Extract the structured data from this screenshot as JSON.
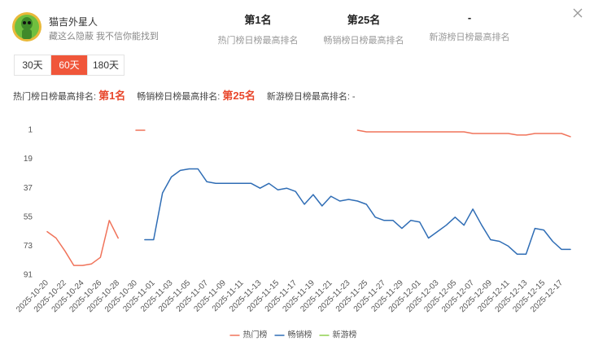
{
  "header": {
    "name": "猫吉外星人",
    "subtitle": "藏这么隐蔽 我不信你能找到",
    "stats": [
      {
        "value": "第1名",
        "label": "热门榜日榜最高排名"
      },
      {
        "value": "第25名",
        "label": "畅销榜日榜最高排名"
      },
      {
        "value": "-",
        "label": "新游榜日榜最高排名"
      }
    ]
  },
  "tabs": {
    "items": [
      "30天",
      "60天",
      "180天"
    ],
    "active": 1
  },
  "summary": [
    {
      "label": "热门榜日榜最高排名:",
      "value": "第1名"
    },
    {
      "label": "畅销榜日榜最高排名:",
      "value": "第25名"
    },
    {
      "label": "新游榜日榜最高排名:",
      "value": "-"
    }
  ],
  "chart_data": {
    "type": "line",
    "categories": [
      "2025-10-20",
      null,
      "2025-10-22",
      null,
      "2025-10-24",
      null,
      "2025-10-26",
      null,
      "2025-10-28",
      null,
      "2025-10-30",
      null,
      "2025-11-01",
      null,
      "2025-11-03",
      null,
      "2025-11-05",
      null,
      "2025-11-07",
      null,
      "2025-11-09",
      null,
      "2025-11-11",
      null,
      "2025-11-13",
      null,
      "2025-11-15",
      null,
      "2025-11-17",
      null,
      "2025-11-19",
      null,
      "2025-11-21",
      null,
      "2025-11-23",
      null,
      "2025-11-25",
      null,
      "2025-11-27",
      null,
      "2025-11-29",
      null,
      "2025-12-01",
      null,
      "2025-12-03",
      null,
      "2025-12-05",
      null,
      "2025-12-07",
      null,
      "2025-12-09",
      null,
      "2025-12-11",
      null,
      "2025-12-13",
      null,
      "2025-12-15",
      null,
      "2025-12-17",
      null
    ],
    "series": [
      {
        "name": "热门榜",
        "color": "#f0735a",
        "values": [
          64,
          68,
          76,
          85,
          85,
          84,
          80,
          57,
          68,
          null,
          1,
          1,
          null,
          null,
          null,
          null,
          null,
          null,
          null,
          null,
          null,
          null,
          null,
          null,
          null,
          null,
          null,
          null,
          null,
          null,
          null,
          null,
          null,
          null,
          null,
          1,
          2,
          2,
          2,
          2,
          2,
          2,
          2,
          2,
          2,
          2,
          2,
          2,
          3,
          3,
          3,
          3,
          3,
          4,
          4,
          3,
          3,
          3,
          3,
          5
        ]
      },
      {
        "name": "畅销榜",
        "color": "#2f6db5",
        "values": [
          null,
          null,
          null,
          null,
          null,
          null,
          null,
          null,
          null,
          null,
          null,
          69,
          69,
          40,
          30,
          26,
          25,
          25,
          33,
          34,
          34,
          34,
          34,
          34,
          37,
          34,
          38,
          37,
          39,
          47,
          41,
          48,
          42,
          45,
          44,
          45,
          47,
          55,
          57,
          57,
          62,
          57,
          58,
          68,
          64,
          60,
          55,
          60,
          50,
          60,
          69,
          70,
          73,
          78,
          78,
          62,
          63,
          70,
          75,
          75
        ]
      },
      {
        "name": "新游榜",
        "color": "#8fd14f",
        "values": [
          null,
          null,
          null,
          null,
          null,
          null,
          null,
          null,
          null,
          null,
          null,
          null,
          null,
          null,
          null,
          null,
          null,
          null,
          null,
          null,
          null,
          null,
          null,
          null,
          null,
          null,
          null,
          null,
          null,
          null,
          null,
          null,
          null,
          null,
          null,
          null,
          null,
          null,
          null,
          null,
          null,
          null,
          null,
          null,
          null,
          null,
          null,
          null,
          null,
          null,
          null,
          null,
          null,
          null,
          null,
          null,
          null,
          null,
          null,
          null
        ]
      }
    ],
    "ylim": [
      1,
      91
    ],
    "y_inverted": true,
    "yticks": [
      1,
      19,
      37,
      55,
      73,
      91
    ],
    "grid": false,
    "legend": "bottom"
  }
}
